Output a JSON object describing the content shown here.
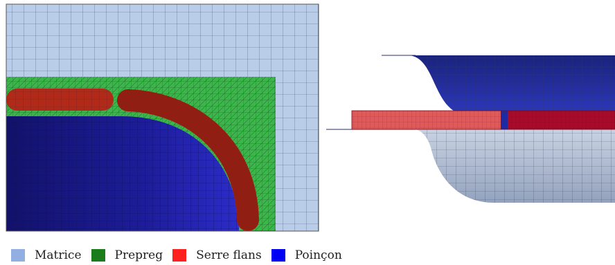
{
  "legend": {
    "items": [
      {
        "label": "Matrice",
        "color": "#93aee0"
      },
      {
        "label": "Prepreg",
        "color": "#1b7c1b"
      },
      {
        "label": "Serre flans",
        "color": "#ff2020"
      },
      {
        "label": "Poinçon",
        "color": "#0000f5"
      }
    ]
  },
  "colors": {
    "matrice_mesh": "#b9cde8",
    "prepreg_mesh": "#3cb54a",
    "serre_flans_mesh": "#b02a1a",
    "poincon_mesh": "#2a2ac8",
    "poincon_dark": "#14146e",
    "side_top_die": "#1f2aa0",
    "side_blank_light": "#e05a5a",
    "side_blank_dark": "#a80a2a",
    "side_bottom_die": "#b0bdd0"
  }
}
